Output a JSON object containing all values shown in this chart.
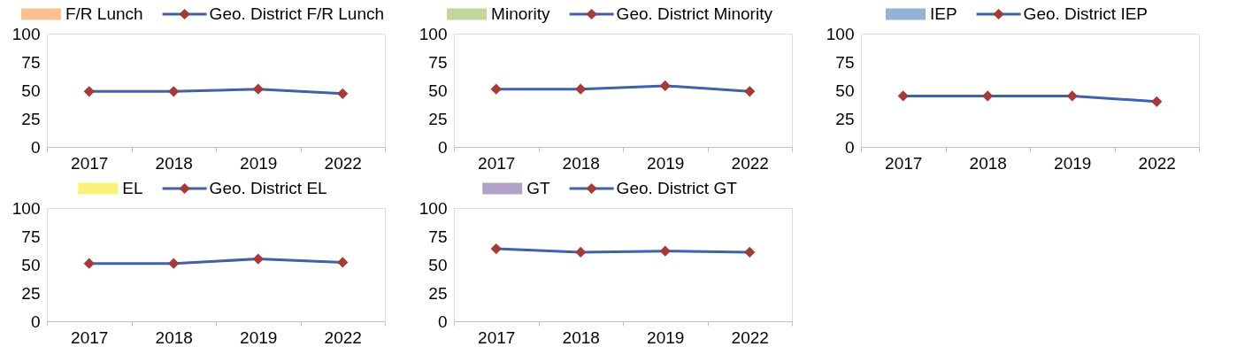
{
  "chart_data": [
    {
      "type": "line",
      "categories": [
        "2017",
        "2018",
        "2019",
        "2022"
      ],
      "ylim": [
        0,
        100
      ],
      "yticks": [
        0,
        25,
        50,
        75,
        100
      ],
      "legend": "top",
      "marker": "diamond",
      "line_style": "solid",
      "series": [
        {
          "name": "F/R Lunch",
          "type": "bar",
          "color": "#fac090",
          "values": [
            null,
            null,
            null,
            null
          ]
        },
        {
          "name": "Geo. District F/R Lunch",
          "color": "#4060a8",
          "colors": [
            "#a33b38",
            "#a33b38",
            "#a33b38",
            "#a33b38"
          ],
          "values": [
            49,
            49,
            51,
            47
          ]
        }
      ]
    },
    {
      "type": "line",
      "categories": [
        "2017",
        "2018",
        "2019",
        "2022"
      ],
      "ylim": [
        0,
        100
      ],
      "yticks": [
        0,
        25,
        50,
        75,
        100
      ],
      "legend": "top",
      "marker": "diamond",
      "line_style": "solid",
      "series": [
        {
          "name": "Minority",
          "type": "bar",
          "color": "#c3d69b",
          "values": [
            null,
            null,
            null,
            null
          ]
        },
        {
          "name": "Geo. District Minority",
          "color": "#4060a8",
          "colors": [
            "#a33b38",
            "#a33b38",
            "#a33b38",
            "#a33b38"
          ],
          "values": [
            51,
            51,
            54,
            49
          ]
        }
      ]
    },
    {
      "type": "line",
      "categories": [
        "2017",
        "2018",
        "2019",
        "2022"
      ],
      "ylim": [
        0,
        100
      ],
      "yticks": [
        0,
        25,
        50,
        75,
        100
      ],
      "legend": "top",
      "marker": "diamond",
      "line_style": "solid",
      "series": [
        {
          "name": "IEP",
          "type": "bar",
          "color": "#95b3d7",
          "values": [
            null,
            null,
            null,
            null
          ]
        },
        {
          "name": "Geo. District IEP",
          "color": "#4060a8",
          "colors": [
            "#a33b38",
            "#a33b38",
            "#a33b38",
            "#a33b38"
          ],
          "values": [
            45,
            45,
            45,
            40
          ]
        }
      ]
    },
    {
      "type": "line",
      "categories": [
        "2017",
        "2018",
        "2019",
        "2022"
      ],
      "ylim": [
        0,
        100
      ],
      "yticks": [
        0,
        25,
        50,
        75,
        100
      ],
      "legend": "top",
      "marker": "diamond",
      "line_style": "solid",
      "series": [
        {
          "name": "EL",
          "type": "bar",
          "color": "#f7f27a",
          "values": [
            null,
            null,
            null,
            null
          ]
        },
        {
          "name": "Geo. District EL",
          "color": "#4060a8",
          "colors": [
            "#a33b38",
            "#a33b38",
            "#a33b38",
            "#a33b38"
          ],
          "values": [
            51,
            51,
            55,
            52
          ]
        }
      ]
    },
    {
      "type": "line",
      "categories": [
        "2017",
        "2018",
        "2019",
        "2022"
      ],
      "ylim": [
        0,
        100
      ],
      "yticks": [
        0,
        25,
        50,
        75,
        100
      ],
      "legend": "top",
      "marker": "diamond",
      "line_style": "solid",
      "series": [
        {
          "name": "GT",
          "type": "bar",
          "color": "#b3a2c7",
          "values": [
            null,
            null,
            null,
            null
          ]
        },
        {
          "name": "Geo. District GT",
          "color": "#4060a8",
          "colors": [
            "#a33b38",
            "#a33b38",
            "#a33b38",
            "#a33b38"
          ],
          "values": [
            64,
            61,
            62,
            61
          ]
        }
      ]
    }
  ]
}
